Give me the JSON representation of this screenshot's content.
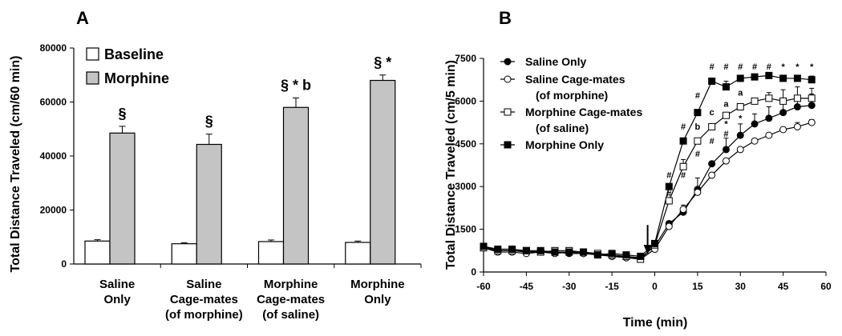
{
  "colors": {
    "baseline": "#ffffff",
    "morphine": "#c4c4c4",
    "ink": "#000000"
  },
  "chart_data": [
    {
      "panel": "A",
      "type": "bar",
      "ylabel": "Total Distance Traveled (cm/60 min)",
      "ylim": [
        0,
        80000
      ],
      "yticks": [
        0,
        20000,
        40000,
        60000,
        80000
      ],
      "ytick_labels": [
        "0",
        "20000",
        "40000",
        "60000",
        "80000"
      ],
      "grid": false,
      "legend_position": "top-left",
      "categories": [
        [
          "Saline",
          "Only"
        ],
        [
          "Saline",
          "Cage-mates",
          "(of morphine)"
        ],
        [
          "Morphine",
          "Cage-mates",
          "(of saline)"
        ],
        [
          "Morphine",
          "Only"
        ]
      ],
      "series": [
        {
          "name": "Baseline",
          "values": [
            8500,
            7500,
            8300,
            8000
          ],
          "errors": [
            500,
            400,
            600,
            500
          ]
        },
        {
          "name": "Morphine",
          "values": [
            48500,
            44300,
            58000,
            68000
          ],
          "errors": [
            2500,
            3800,
            3500,
            2000
          ]
        }
      ],
      "annotations": [
        "§",
        "§",
        "§ * b",
        "§ *"
      ]
    },
    {
      "panel": "B",
      "type": "line",
      "xlabel": "Time (min)",
      "ylabel": "Total Distance Traveled (cm/5 min)",
      "xlim": [
        -60,
        60
      ],
      "ylim": [
        0,
        7500
      ],
      "xticks": [
        -60,
        -45,
        -30,
        -15,
        0,
        15,
        30,
        45,
        60
      ],
      "xtick_labels": [
        "-60",
        "-45",
        "-30",
        "-15",
        "0",
        "15",
        "30",
        "45",
        "60"
      ],
      "yticks": [
        0,
        1500,
        3000,
        4500,
        6000,
        7500
      ],
      "ytick_labels": [
        "0",
        "1500",
        "3000",
        "4500",
        "6000",
        "7500"
      ],
      "grid": false,
      "legend_position": "top-left",
      "injection_time": -2.5,
      "x": [
        -60,
        -55,
        -50,
        -45,
        -40,
        -35,
        -30,
        -25,
        -20,
        -15,
        -10,
        -5,
        0,
        5,
        10,
        15,
        20,
        25,
        30,
        35,
        40,
        45,
        50,
        55
      ],
      "series": [
        {
          "name": "Saline Only",
          "marker": "filled-circle",
          "values": [
            900,
            750,
            750,
            700,
            700,
            700,
            650,
            650,
            600,
            550,
            550,
            500,
            900,
            1700,
            2100,
            2900,
            3800,
            4300,
            4800,
            5200,
            5400,
            5600,
            5800,
            5850
          ]
        },
        {
          "name": "Saline Cage-mates\n(of morphine)",
          "marker": "open-circle",
          "values": [
            850,
            700,
            700,
            650,
            700,
            650,
            700,
            650,
            650,
            550,
            500,
            450,
            800,
            1600,
            2200,
            2800,
            3400,
            3900,
            4300,
            4600,
            4800,
            5000,
            5100,
            5250
          ]
        },
        {
          "name": "Morphine Cage-mates\n(of saline)",
          "marker": "open-square",
          "values": [
            850,
            750,
            750,
            750,
            700,
            750,
            750,
            700,
            650,
            600,
            550,
            450,
            950,
            2500,
            3700,
            4600,
            5100,
            5500,
            5800,
            6000,
            6100,
            6000,
            6100,
            6100
          ]
        },
        {
          "name": "Morphine Only",
          "marker": "filled-square",
          "values": [
            900,
            800,
            800,
            750,
            750,
            700,
            700,
            700,
            600,
            650,
            600,
            550,
            1000,
            3000,
            4600,
            5600,
            6700,
            6500,
            6800,
            6850,
            6900,
            6800,
            6800,
            6750
          ]
        }
      ],
      "errors": [
        {
          "x": 10,
          "y": 2100,
          "up": 2350
        },
        {
          "x": 15,
          "y": 2900,
          "up": 3300
        },
        {
          "x": 25,
          "y": 4300,
          "up": 4700
        },
        {
          "x": 30,
          "y": 4800,
          "up": 5200
        },
        {
          "x": 35,
          "y": 5200,
          "up": 5550
        },
        {
          "x": 40,
          "y": 5400,
          "up": 5800
        },
        {
          "x": 45,
          "y": 5600,
          "up": 5950
        },
        {
          "x": 50,
          "y": 5800,
          "up": 6100
        },
        {
          "x": 55,
          "y": 5850,
          "up": 6250
        },
        {
          "x": 55,
          "y": 5250,
          "up": 5350
        },
        {
          "x": 50,
          "y": 5100,
          "up": 5250
        },
        {
          "x": 40,
          "y": 6100,
          "up": 6300
        },
        {
          "x": 45,
          "y": 6000,
          "up": 6400
        },
        {
          "x": 50,
          "y": 6100,
          "up": 6500
        },
        {
          "x": 55,
          "y": 6100,
          "up": 6450
        },
        {
          "x": 55,
          "y": 6750,
          "up": 6880
        },
        {
          "x": 10,
          "y": 3700,
          "up": 3950
        },
        {
          "x": 25,
          "y": 6500,
          "up": 6700
        }
      ],
      "annotations": [
        {
          "text": "#",
          "x": 5,
          "y": 3300
        },
        {
          "text": "#",
          "x": 10,
          "y": 5000
        },
        {
          "text": "#",
          "x": 15,
          "y": 6100
        },
        {
          "text": "#",
          "x": 20,
          "y": 7100
        },
        {
          "text": "#",
          "x": 25,
          "y": 7100
        },
        {
          "text": "#",
          "x": 30,
          "y": 7100
        },
        {
          "text": "#",
          "x": 35,
          "y": 7100
        },
        {
          "text": "#",
          "x": 40,
          "y": 7100
        },
        {
          "text": "*",
          "x": 45,
          "y": 7100
        },
        {
          "text": "*",
          "x": 50,
          "y": 7100
        },
        {
          "text": "*",
          "x": 55,
          "y": 7100
        },
        {
          "text": "#",
          "x": 5,
          "y": 2650
        },
        {
          "text": "#",
          "x": 10,
          "y": 3300
        },
        {
          "text": "#",
          "x": 15,
          "y": 4050
        },
        {
          "text": "#",
          "x": 20,
          "y": 4500
        },
        {
          "text": "#",
          "x": 25,
          "y": 4750
        },
        {
          "text": "*",
          "x": 25,
          "y": 5100
        },
        {
          "text": "*",
          "x": 30,
          "y": 5300
        },
        {
          "text": "b",
          "x": 15,
          "y": 5000
        },
        {
          "text": "c",
          "x": 20,
          "y": 5500
        },
        {
          "text": "a",
          "x": 25,
          "y": 5800
        },
        {
          "text": "a",
          "x": 30,
          "y": 6200
        }
      ]
    }
  ]
}
